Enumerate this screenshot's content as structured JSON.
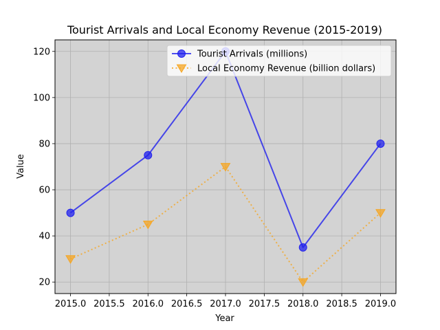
{
  "chart_data": {
    "type": "line",
    "title": "Tourist Arrivals and Local Economy Revenue (2015-2019)",
    "xlabel": "Year",
    "ylabel": "Value",
    "x": [
      2015,
      2016,
      2017,
      2018,
      2019
    ],
    "xlim": [
      2014.8,
      2019.2
    ],
    "ylim": [
      15,
      125
    ],
    "x_ticks": [
      2015.0,
      2015.5,
      2016.0,
      2016.5,
      2017.0,
      2017.5,
      2018.0,
      2018.5,
      2019.0
    ],
    "x_tick_labels": [
      "2015.0",
      "2015.5",
      "2016.0",
      "2016.5",
      "2017.0",
      "2017.5",
      "2018.0",
      "2018.5",
      "2019.0"
    ],
    "y_ticks": [
      20,
      40,
      60,
      80,
      100,
      120
    ],
    "y_tick_labels": [
      "20",
      "40",
      "60",
      "80",
      "100",
      "120"
    ],
    "grid": true,
    "background": "#d3d3d3",
    "legend_position": "top-right",
    "series": [
      {
        "name": "Tourist Arrivals (millions)",
        "values": [
          50,
          75,
          120,
          35,
          80
        ],
        "color": "#2222ee",
        "marker": "circle",
        "line_style": "solid"
      },
      {
        "name": "Local Economy Revenue (billion dollars)",
        "values": [
          30,
          45,
          70,
          20,
          50
        ],
        "color": "#f5a623",
        "marker": "triangle-down",
        "line_style": "dotted"
      }
    ]
  }
}
